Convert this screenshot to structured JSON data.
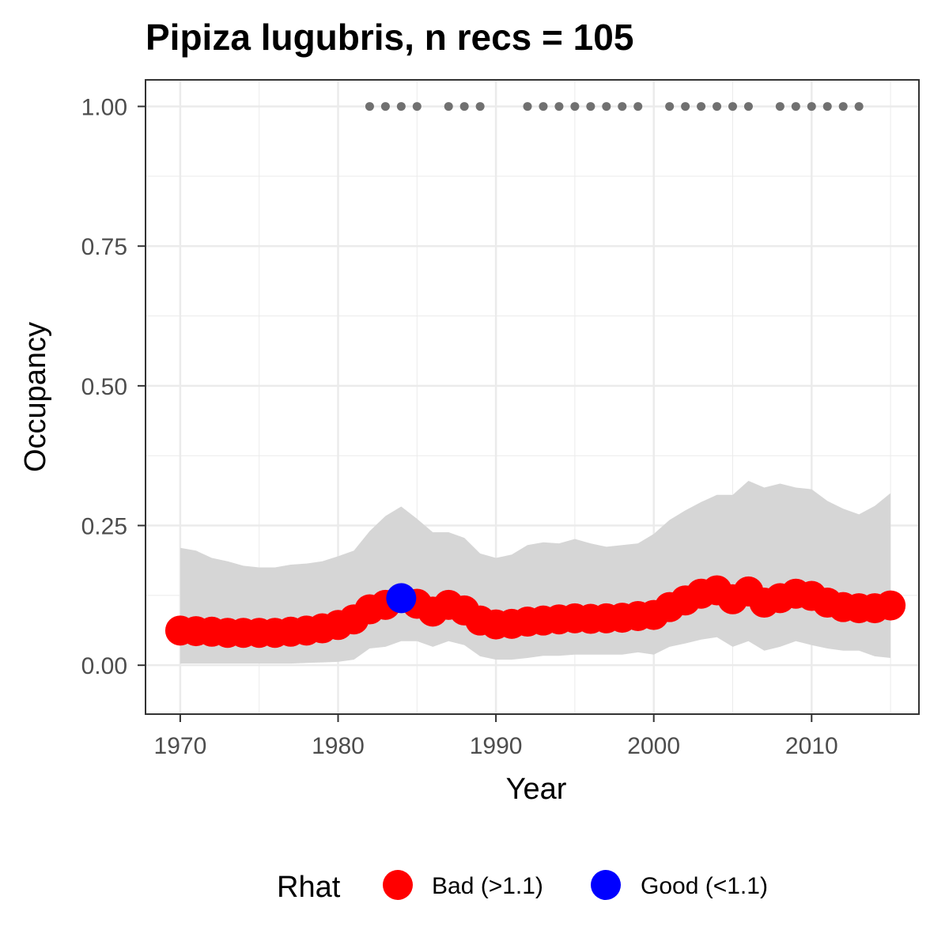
{
  "chart_data": {
    "type": "line",
    "title": "Pipiza lugubris, n recs = 105",
    "xlabel": "Year",
    "ylabel": "Occupancy",
    "xlim": [
      1967.8,
      2016.8
    ],
    "ylim": [
      -0.0875,
      1.0475
    ],
    "x_ticks": [
      1970,
      1980,
      1990,
      2000,
      2010
    ],
    "x_tick_labels": [
      "1970",
      "1980",
      "1990",
      "2000",
      "2010"
    ],
    "y_ticks": [
      0,
      0.25,
      0.5,
      0.75,
      1.0
    ],
    "y_tick_labels": [
      "0.00",
      "0.25",
      "0.50",
      "0.75",
      "1.00"
    ],
    "grid": true,
    "legend": {
      "title": "Rhat",
      "position": "bottom",
      "entries": [
        {
          "label": "Bad (>1.1)",
          "color": "#ff0000"
        },
        {
          "label": "Good (<1.1)",
          "color": "#0000ff"
        }
      ]
    },
    "colors": {
      "bad": "#ff0000",
      "good": "#0000ff",
      "ribbon": "#d6d6d6",
      "record_dots": "#707070"
    },
    "series": [
      {
        "x": [
          1970,
          1971,
          1972,
          1973,
          1974,
          1975,
          1976,
          1977,
          1978,
          1979,
          1980,
          1981,
          1982,
          1983,
          1984,
          1985,
          1986,
          1987,
          1988,
          1989,
          1990,
          1991,
          1992,
          1993,
          1994,
          1995,
          1996,
          1997,
          1998,
          1999,
          2000,
          2001,
          2002,
          2003,
          2004,
          2005,
          2006,
          2007,
          2008,
          2009,
          2010,
          2011,
          2012,
          2013,
          2014,
          2015
        ],
        "y": [
          0.062,
          0.061,
          0.06,
          0.058,
          0.058,
          0.058,
          0.058,
          0.06,
          0.062,
          0.066,
          0.072,
          0.082,
          0.1,
          0.108,
          0.12,
          0.11,
          0.096,
          0.108,
          0.098,
          0.08,
          0.073,
          0.074,
          0.078,
          0.08,
          0.082,
          0.084,
          0.083,
          0.084,
          0.085,
          0.088,
          0.09,
          0.104,
          0.116,
          0.128,
          0.134,
          0.118,
          0.132,
          0.112,
          0.12,
          0.128,
          0.124,
          0.112,
          0.104,
          0.102,
          0.102,
          0.107
        ],
        "lower": [
          0.003,
          0.003,
          0.003,
          0.003,
          0.003,
          0.003,
          0.003,
          0.003,
          0.004,
          0.005,
          0.006,
          0.01,
          0.03,
          0.033,
          0.043,
          0.043,
          0.033,
          0.043,
          0.036,
          0.016,
          0.01,
          0.01,
          0.013,
          0.017,
          0.017,
          0.019,
          0.019,
          0.019,
          0.019,
          0.023,
          0.019,
          0.033,
          0.039,
          0.046,
          0.05,
          0.033,
          0.043,
          0.026,
          0.033,
          0.043,
          0.036,
          0.03,
          0.026,
          0.026,
          0.016,
          0.013
        ],
        "upper": [
          0.21,
          0.205,
          0.192,
          0.186,
          0.178,
          0.175,
          0.175,
          0.18,
          0.182,
          0.186,
          0.195,
          0.205,
          0.24,
          0.267,
          0.284,
          0.262,
          0.238,
          0.238,
          0.228,
          0.2,
          0.192,
          0.198,
          0.215,
          0.22,
          0.218,
          0.226,
          0.218,
          0.212,
          0.215,
          0.218,
          0.235,
          0.26,
          0.277,
          0.292,
          0.305,
          0.305,
          0.33,
          0.318,
          0.325,
          0.318,
          0.315,
          0.294,
          0.28,
          0.27,
          0.285,
          0.308
        ],
        "rhat": [
          "Bad (>1.1)",
          "Bad (>1.1)",
          "Bad (>1.1)",
          "Bad (>1.1)",
          "Bad (>1.1)",
          "Bad (>1.1)",
          "Bad (>1.1)",
          "Bad (>1.1)",
          "Bad (>1.1)",
          "Bad (>1.1)",
          "Bad (>1.1)",
          "Bad (>1.1)",
          "Bad (>1.1)",
          "Bad (>1.1)",
          "Good (<1.1)",
          "Bad (>1.1)",
          "Bad (>1.1)",
          "Bad (>1.1)",
          "Bad (>1.1)",
          "Bad (>1.1)",
          "Bad (>1.1)",
          "Bad (>1.1)",
          "Bad (>1.1)",
          "Bad (>1.1)",
          "Bad (>1.1)",
          "Bad (>1.1)",
          "Bad (>1.1)",
          "Bad (>1.1)",
          "Bad (>1.1)",
          "Bad (>1.1)",
          "Bad (>1.1)",
          "Bad (>1.1)",
          "Bad (>1.1)",
          "Bad (>1.1)",
          "Bad (>1.1)",
          "Bad (>1.1)",
          "Bad (>1.1)",
          "Bad (>1.1)",
          "Bad (>1.1)",
          "Bad (>1.1)",
          "Bad (>1.1)",
          "Bad (>1.1)",
          "Bad (>1.1)",
          "Bad (>1.1)",
          "Bad (>1.1)",
          "Bad (>1.1)"
        ]
      }
    ],
    "record_years": [
      1982,
      1983,
      1984,
      1985,
      1987,
      1988,
      1989,
      1992,
      1993,
      1994,
      1995,
      1996,
      1997,
      1998,
      1999,
      2001,
      2002,
      2003,
      2004,
      2005,
      2006,
      2008,
      2009,
      2010,
      2011,
      2012,
      2013
    ],
    "record_y": 1.0
  }
}
